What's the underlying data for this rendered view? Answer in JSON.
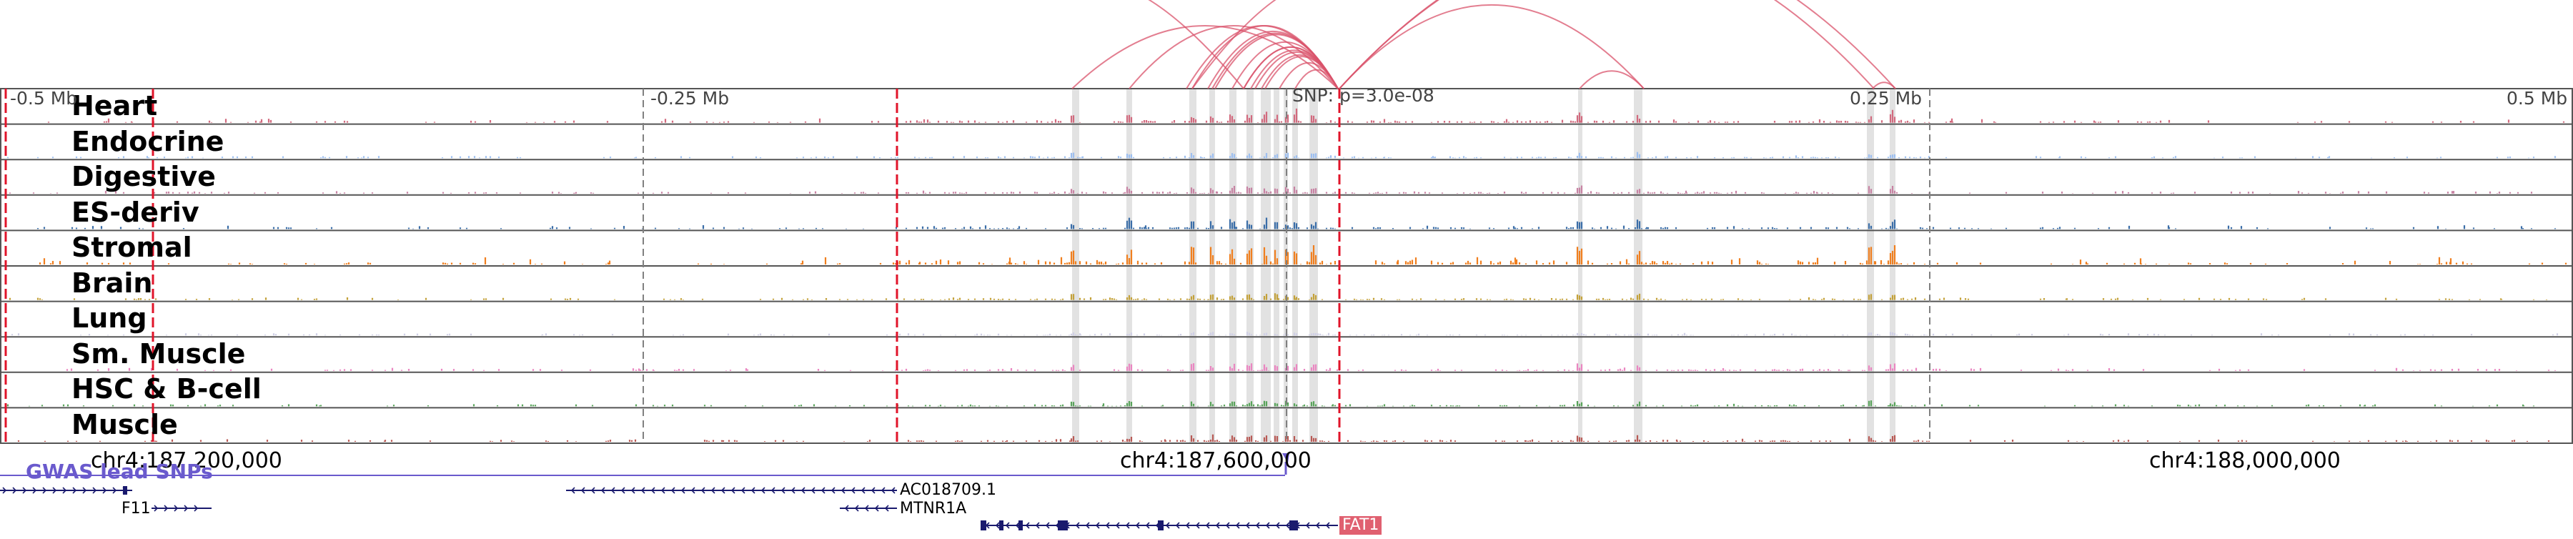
{
  "scale_labels": [
    "-0.5 Mb",
    "-0.25 Mb",
    "0.25 Mb",
    "0.5 Mb"
  ],
  "snp_label": "SNP: p=3.0e-08",
  "coordinates": [
    "chr4:187,200,000",
    "chr4:187,600,000",
    "chr4:188,000,000"
  ],
  "gwas_track_label": "GWAS lead SNPs",
  "tracks": [
    {
      "name": "Heart",
      "color": "#d26a7e"
    },
    {
      "name": "Endocrine",
      "color": "#9dbff0"
    },
    {
      "name": "Digestive",
      "color": "#c783a3"
    },
    {
      "name": "ES-deriv",
      "color": "#3b6ea8"
    },
    {
      "name": "Stromal",
      "color": "#f07f1f"
    },
    {
      "name": "Brain",
      "color": "#c3a13a"
    },
    {
      "name": "Lung",
      "color": "#d0d0e6"
    },
    {
      "name": "Sm. Muscle",
      "color": "#ea86c1"
    },
    {
      "name": "HSC & B-cell",
      "color": "#58a35a"
    },
    {
      "name": "Muscle",
      "color": "#b85a55"
    }
  ],
  "genes": [
    {
      "name": "F11",
      "strand": "+"
    },
    {
      "name": "AC018709.1",
      "strand": "-"
    },
    {
      "name": "MTNR1A",
      "strand": "-"
    },
    {
      "name": "FAT1",
      "strand": "-"
    }
  ],
  "colors": {
    "loop_arcs": "#d9536b",
    "gene_models": "#1a1a6e",
    "highlight": "#d8d8d8",
    "tad_boundary": "#e0142a",
    "gwas": "#6a5acd"
  }
}
